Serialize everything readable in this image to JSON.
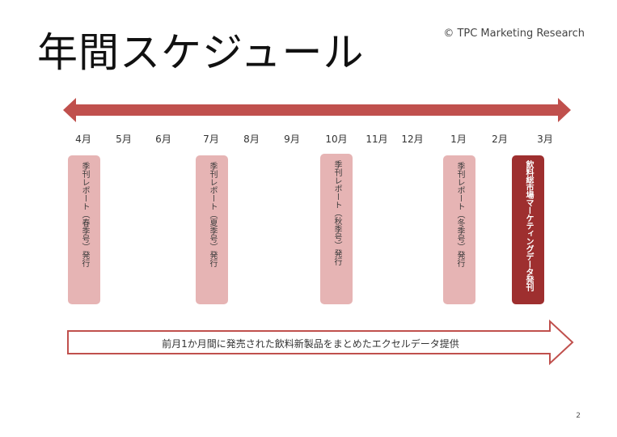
{
  "slide": {
    "title": "年間スケジュール",
    "copyright": "©  TPC  Marketing  Research",
    "page_number": "2"
  },
  "timeline": {
    "accent_color": "#c0504d",
    "months": [
      "4月",
      "5月",
      "6月",
      "7月",
      "8月",
      "9月",
      "10月",
      "11月",
      "12月",
      "1月",
      "2月",
      "3月"
    ]
  },
  "cards": [
    {
      "month": "4月",
      "label": "季刊レポート（春季号）発行",
      "color": "#e6b4b4"
    },
    {
      "month": "7月",
      "label": "季刊レポート（夏季号）発行",
      "color": "#e6b4b4"
    },
    {
      "month": "10月",
      "label": "季刊レポート（秋季号）発行",
      "color": "#e6b4b4"
    },
    {
      "month": "1月",
      "label": "季刊レポート（冬季号）発行",
      "color": "#e6b4b4"
    },
    {
      "month": "3月",
      "label": "飲料総市場マーケティングデータ発刊",
      "color": "#9e2f2f"
    }
  ],
  "monthly_bar": {
    "text": "前月1か月間に発売された飲料新製品をまとめたエクセルデータ提供"
  }
}
